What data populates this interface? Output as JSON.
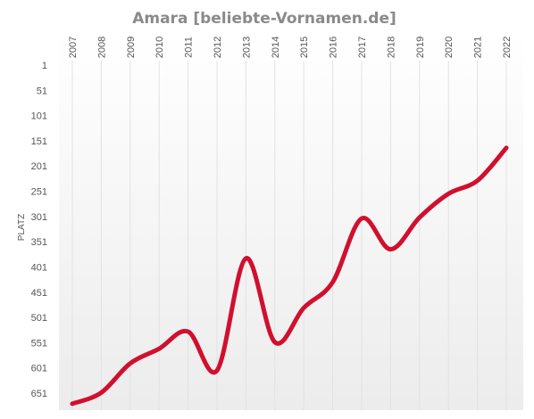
{
  "chart_data": {
    "type": "line",
    "title": "Amara [beliebte-Vornamen.de]",
    "xlabel": "",
    "ylabel": "PLATZ",
    "categories": [
      "2007",
      "2008",
      "2009",
      "2010",
      "2011",
      "2012",
      "2013",
      "2014",
      "2015",
      "2016",
      "2017",
      "2018",
      "2019",
      "2020",
      "2021",
      "2022"
    ],
    "yticks": [
      "1",
      "51",
      "101",
      "151",
      "201",
      "251",
      "301",
      "351",
      "401",
      "451",
      "501",
      "551",
      "601",
      "651"
    ],
    "ylim": [
      1,
      671
    ],
    "y_inverted": true,
    "grid": true,
    "legend": "none",
    "series": [
      {
        "color": "#d0102e",
        "values": [
          672,
          650,
          592,
          563,
          529,
          606,
          384,
          550,
          482,
          431,
          305,
          366,
          303,
          256,
          230,
          165
        ]
      }
    ]
  }
}
